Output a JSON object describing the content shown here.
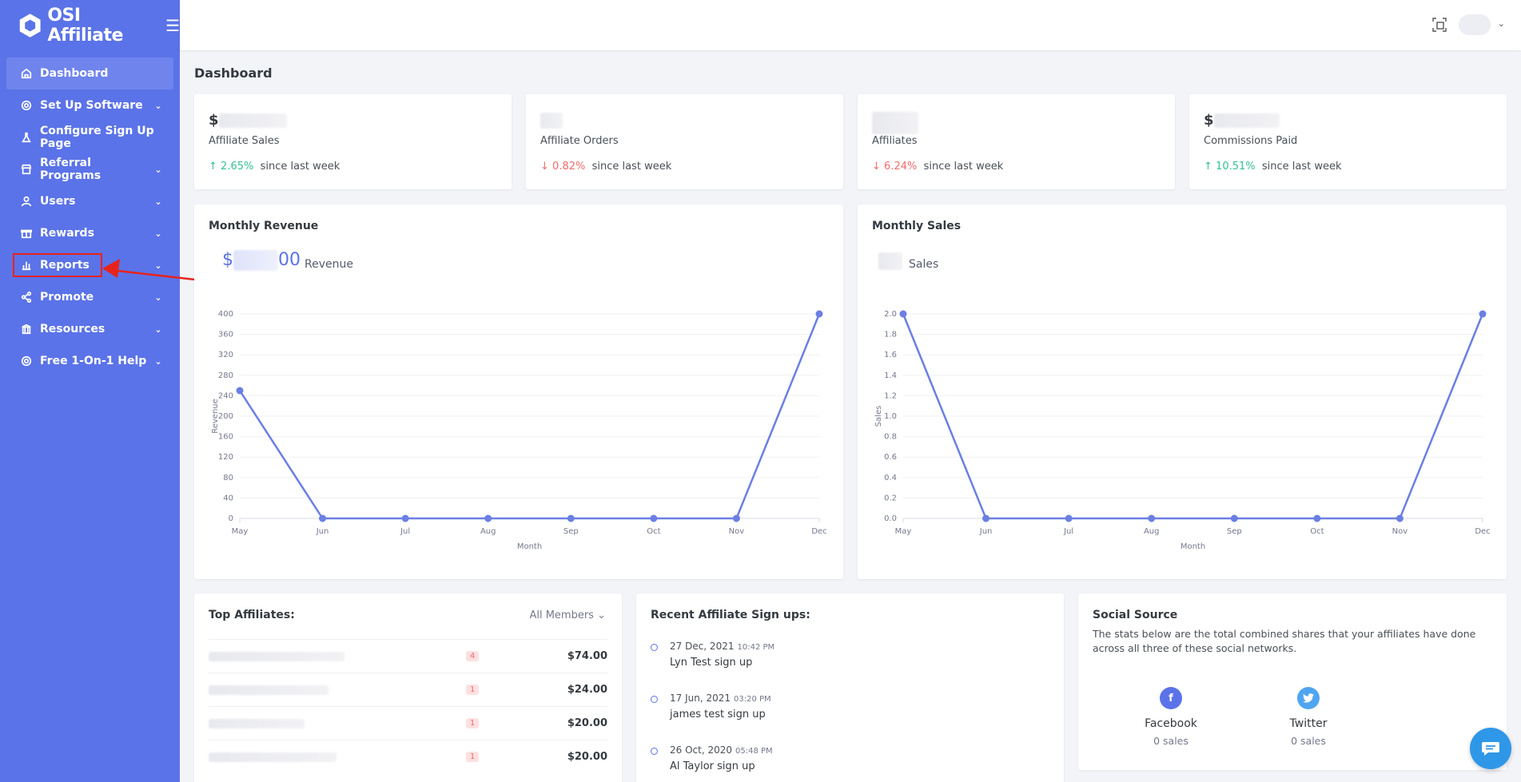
{
  "brand": {
    "name": "OSI Affiliate"
  },
  "sidebar": {
    "items": [
      {
        "label": "Dashboard",
        "icon": "home-icon",
        "active": true,
        "has_caret": false
      },
      {
        "label": "Set Up Software",
        "icon": "settings-icon",
        "has_caret": true
      },
      {
        "label": "Configure Sign Up Page",
        "icon": "flask-icon",
        "has_caret": false
      },
      {
        "label": "Referral Programs",
        "icon": "store-icon",
        "has_caret": true
      },
      {
        "label": "Users",
        "icon": "user-icon",
        "has_caret": true
      },
      {
        "label": "Rewards",
        "icon": "gift-icon",
        "has_caret": true
      },
      {
        "label": "Reports",
        "icon": "bar-chart-icon",
        "has_caret": true
      },
      {
        "label": "Promote",
        "icon": "share-icon",
        "has_caret": true
      },
      {
        "label": "Resources",
        "icon": "building-icon",
        "has_caret": true
      },
      {
        "label": "Free 1-On-1 Help",
        "icon": "lifebuoy-icon",
        "has_caret": true
      }
    ]
  },
  "page": {
    "title": "Dashboard"
  },
  "stats": [
    {
      "value": "$",
      "label": "Affiliate Sales",
      "change": "2.65%",
      "direction": "up",
      "suffix": "since last week"
    },
    {
      "value": "",
      "label": "Affiliate Orders",
      "change": "0.82%",
      "direction": "down",
      "suffix": "since last week"
    },
    {
      "value": "",
      "label": "Affiliates",
      "change": "6.24%",
      "direction": "down",
      "suffix": "since last week"
    },
    {
      "value": "$",
      "label": "Commissions Paid",
      "change": "10.51%",
      "direction": "up",
      "suffix": "since last week"
    }
  ],
  "revenue_card": {
    "title": "Monthly Revenue",
    "value_prefix": "$",
    "value_suffix": "00",
    "legend": "Revenue"
  },
  "sales_card": {
    "title": "Monthly Sales",
    "legend": "Sales"
  },
  "chart_data": [
    {
      "type": "line",
      "title": "Monthly Revenue",
      "xlabel": "Month",
      "ylabel": "Revenue",
      "categories": [
        "May",
        "Jun",
        "Jul",
        "Aug",
        "Sep",
        "Oct",
        "Nov",
        "Dec"
      ],
      "series": [
        {
          "name": "Revenue",
          "values": [
            250,
            0,
            0,
            0,
            0,
            0,
            0,
            400
          ]
        }
      ],
      "ylim": [
        0,
        400
      ],
      "yticks": [
        "0",
        "40",
        "80",
        "120",
        "160",
        "200",
        "240",
        "280",
        "320",
        "360",
        "400"
      ],
      "color": "#6b7fe3"
    },
    {
      "type": "line",
      "title": "Monthly Sales",
      "xlabel": "Month",
      "ylabel": "Sales",
      "categories": [
        "May",
        "Jun",
        "Jul",
        "Aug",
        "Sep",
        "Oct",
        "Nov",
        "Dec"
      ],
      "series": [
        {
          "name": "Sales",
          "values": [
            2.0,
            0,
            0,
            0,
            0,
            0,
            0,
            2.0
          ]
        }
      ],
      "ylim": [
        0,
        2.0
      ],
      "yticks": [
        "0.0",
        "0.2",
        "0.4",
        "0.6",
        "0.8",
        "1.0",
        "1.2",
        "1.4",
        "1.6",
        "1.8",
        "2.0"
      ],
      "color": "#6b7fe3"
    }
  ],
  "top_affiliates": {
    "title": "Top Affiliates:",
    "filter": "All Members",
    "rows": [
      {
        "count": "4",
        "amount": "$74.00"
      },
      {
        "count": "1",
        "amount": "$24.00"
      },
      {
        "count": "1",
        "amount": "$20.00"
      },
      {
        "count": "1",
        "amount": "$20.00"
      }
    ]
  },
  "recent_signups": {
    "title": "Recent Affiliate Sign ups:",
    "items": [
      {
        "date": "27 Dec, 2021",
        "time": "10:42 PM",
        "text": "Lyn Test sign up"
      },
      {
        "date": "17 Jun, 2021",
        "time": "03:20 PM",
        "text": "james test sign up"
      },
      {
        "date": "26 Oct, 2020",
        "time": "05:48 PM",
        "text": "Al Taylor sign up"
      }
    ]
  },
  "social": {
    "title": "Social Source",
    "description": "The stats below are the total combined shares that your affiliates have done across all three of these social networks.",
    "networks": [
      {
        "name": "Facebook",
        "count": "0 sales",
        "color": "#5b73e8",
        "icon": "facebook-icon"
      },
      {
        "name": "Twitter",
        "count": "0 sales",
        "color": "#50a5f1",
        "icon": "twitter-icon"
      }
    ]
  }
}
